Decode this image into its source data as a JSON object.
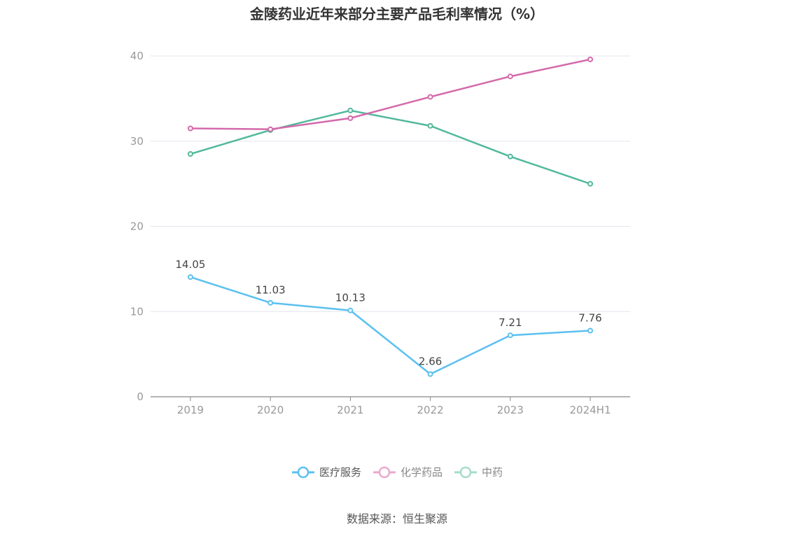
{
  "title": "金陵药业近年来部分主要产品毛利率情况（%）",
  "source": "数据来源：恒生聚源",
  "chart_data": {
    "type": "line",
    "title": "金陵药业近年来部分主要产品毛利率情况（%）",
    "categories": [
      "2019",
      "2020",
      "2021",
      "2022",
      "2023",
      "2024H1"
    ],
    "ylim": [
      0,
      40
    ],
    "yticks": [
      0,
      10,
      20,
      30,
      40
    ],
    "grid": true,
    "legend_position": "bottom",
    "series": [
      {
        "name": "医疗服务",
        "color": "#5bc0f0",
        "values": [
          14.05,
          11.03,
          10.13,
          2.66,
          7.21,
          7.76
        ],
        "labels": [
          "14.05",
          "11.03",
          "10.13",
          "2.66",
          "7.21",
          "7.76"
        ]
      },
      {
        "name": "化学药品",
        "color": "#d46aaa",
        "values": [
          31.5,
          31.4,
          32.7,
          35.2,
          37.6,
          39.6
        ],
        "labels": []
      },
      {
        "name": "中药",
        "color": "#52b89c",
        "values": [
          28.5,
          31.3,
          33.6,
          31.8,
          28.2,
          25.0
        ],
        "labels": []
      }
    ]
  }
}
